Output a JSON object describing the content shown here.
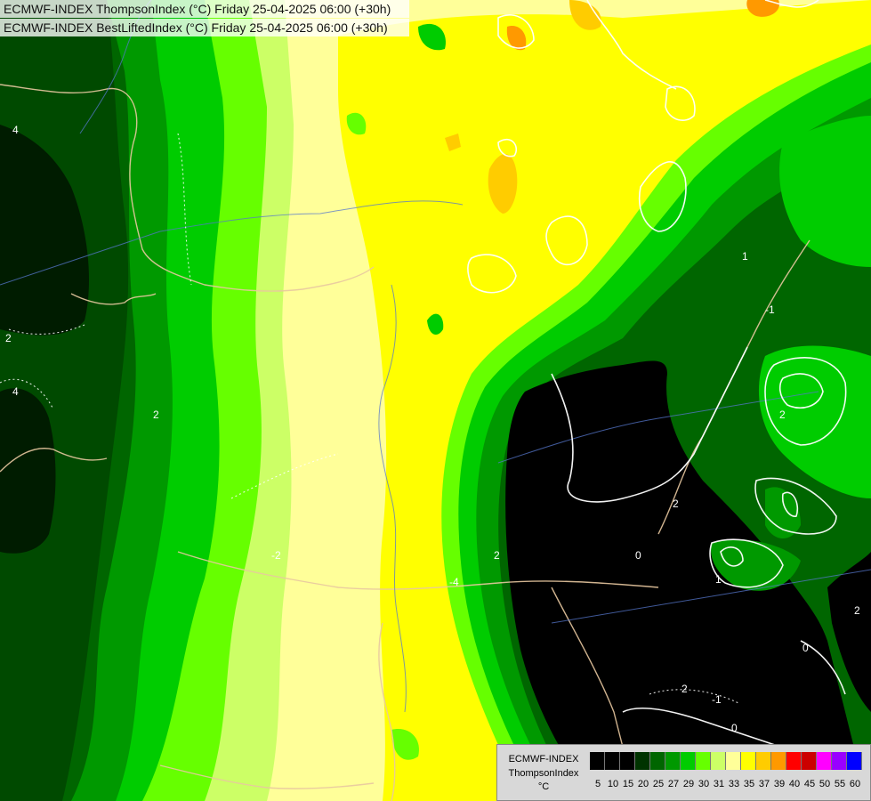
{
  "titles": {
    "line1": "ECMWF-INDEX ThompsonIndex (°C) Friday 25-04-2025 06:00 (+30h)",
    "line2": "ECMWF-INDEX BestLiftedIndex (°C) Friday 25-04-2025 06:00 (+30h)"
  },
  "legend": {
    "model": "ECMWF-INDEX",
    "parameter": "ThompsonIndex",
    "unit": "°C",
    "classes": [
      {
        "label": "5",
        "color": "#000000"
      },
      {
        "label": "10",
        "color": "#000000"
      },
      {
        "label": "15",
        "color": "#000000"
      },
      {
        "label": "20",
        "color": "#003300"
      },
      {
        "label": "25",
        "color": "#006600"
      },
      {
        "label": "27",
        "color": "#009900"
      },
      {
        "label": "29",
        "color": "#00cc00"
      },
      {
        "label": "30",
        "color": "#66ff00"
      },
      {
        "label": "31",
        "color": "#ccff66"
      },
      {
        "label": "33",
        "color": "#ffff99"
      },
      {
        "label": "35",
        "color": "#ffff00"
      },
      {
        "label": "37",
        "color": "#ffcc00"
      },
      {
        "label": "39",
        "color": "#ff9900"
      },
      {
        "label": "40",
        "color": "#ff0000"
      },
      {
        "label": "45",
        "color": "#cc0000"
      },
      {
        "label": "50",
        "color": "#ff00ff"
      },
      {
        "label": "55",
        "color": "#9900ff"
      },
      {
        "label": "60",
        "color": "#0000ff"
      }
    ]
  },
  "contour_labels": [
    "4",
    "2",
    "4",
    "2",
    "-2",
    "-4",
    "2",
    "1",
    "-1",
    "0",
    "2",
    "1",
    "2",
    "0",
    "2",
    "-1",
    "0",
    "2"
  ]
}
